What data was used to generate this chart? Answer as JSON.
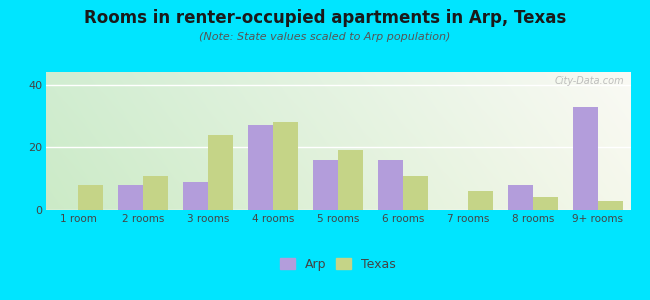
{
  "title": "Rooms in renter-occupied apartments in Arp, Texas",
  "subtitle": "(Note: State values scaled to Arp population)",
  "categories": [
    "1 room",
    "2 rooms",
    "3 rooms",
    "4 rooms",
    "5 rooms",
    "6 rooms",
    "7 rooms",
    "8 rooms",
    "9+ rooms"
  ],
  "arp_values": [
    0,
    8,
    9,
    27,
    16,
    16,
    0,
    8,
    33
  ],
  "texas_values": [
    8,
    11,
    24,
    28,
    19,
    11,
    6,
    4,
    3
  ],
  "arp_color": "#b39ddb",
  "texas_color": "#c5d487",
  "bg_outer": "#00e5ff",
  "title_fontsize": 12,
  "subtitle_fontsize": 8,
  "ylim": [
    0,
    44
  ],
  "yticks": [
    0,
    20,
    40
  ],
  "bar_width": 0.38,
  "legend_labels": [
    "Arp",
    "Texas"
  ],
  "watermark": "City-Data.com"
}
